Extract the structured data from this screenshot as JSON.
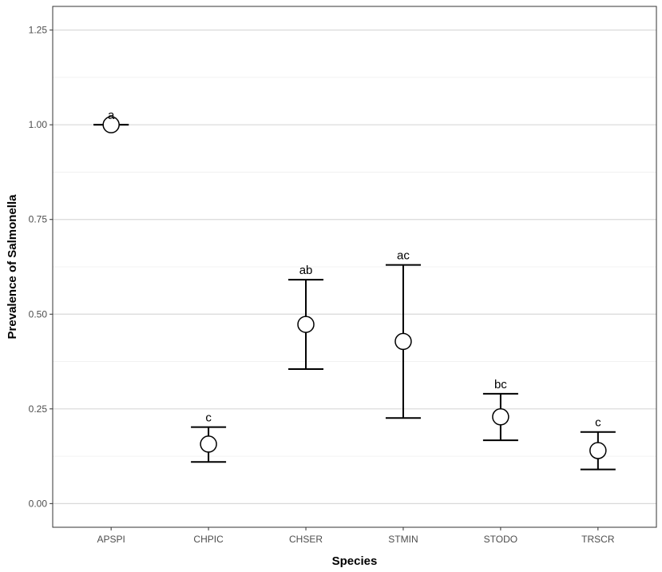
{
  "chart_data": {
    "type": "scatter",
    "title": "",
    "xlabel": "Species",
    "ylabel": "Prevalence of Salmonella",
    "ylim": [
      0,
      1.25
    ],
    "yticks": [
      "0.00",
      "0.25",
      "0.50",
      "0.75",
      "1.00",
      "1.25"
    ],
    "grid": true,
    "categories": [
      "APSPI",
      "CHPIC",
      "CHSER",
      "STMIN",
      "STODO",
      "TRSCR"
    ],
    "points": [
      {
        "category": "APSPI",
        "value": 1.0,
        "lower": 1.0,
        "upper": 1.0,
        "label": "a"
      },
      {
        "category": "CHPIC",
        "value": 0.157,
        "lower": 0.11,
        "upper": 0.202,
        "label": "c"
      },
      {
        "category": "CHSER",
        "value": 0.473,
        "lower": 0.355,
        "upper": 0.591,
        "label": "ab"
      },
      {
        "category": "STMIN",
        "value": 0.428,
        "lower": 0.226,
        "upper": 0.63,
        "label": "ac"
      },
      {
        "category": "STODO",
        "value": 0.229,
        "lower": 0.167,
        "upper": 0.29,
        "label": "bc"
      },
      {
        "category": "TRSCR",
        "value": 0.14,
        "lower": 0.09,
        "upper": 0.189,
        "label": "c"
      }
    ]
  }
}
